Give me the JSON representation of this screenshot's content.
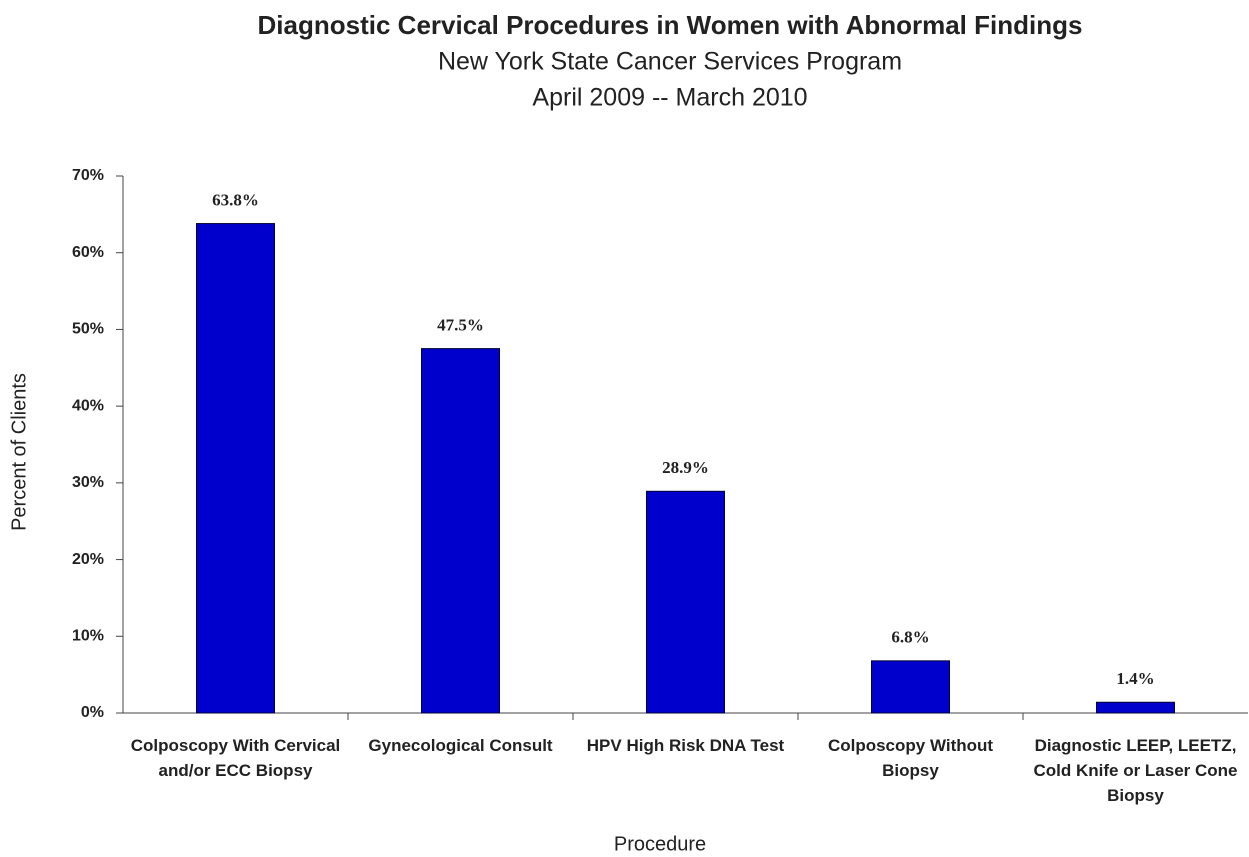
{
  "chart_data": {
    "type": "bar",
    "title": "Diagnostic Cervical Procedures in Women with Abnormal Findings",
    "subtitle": [
      "New York State Cancer Services Program",
      "April 2009 -- March 2010"
    ],
    "x_label": "Procedure",
    "y_label": "Percent of Clients",
    "categories": [
      "Colposcopy With Cervical and/or ECC Biopsy",
      "Gynecological Consult",
      "HPV High Risk DNA Test",
      "Colposcopy Without Biopsy",
      "Diagnostic LEEP, LEETZ, Cold Knife or Laser Cone Biopsy"
    ],
    "values": [
      63.8,
      47.5,
      28.9,
      6.8,
      1.4
    ],
    "value_labels": [
      "63.8%",
      "47.5%",
      "28.9%",
      "6.8%",
      "1.4%"
    ],
    "color": "#0000cc",
    "ylim": [
      0,
      70
    ],
    "yticks": [
      {
        "value": 0,
        "label": "0%"
      },
      {
        "value": 10,
        "label": "10%"
      },
      {
        "value": 20,
        "label": "20%"
      },
      {
        "value": 30,
        "label": "30%"
      },
      {
        "value": 40,
        "label": "40%"
      },
      {
        "value": 50,
        "label": "50%"
      },
      {
        "value": 60,
        "label": "60%"
      },
      {
        "value": 70,
        "label": "70%"
      }
    ],
    "grid": false
  }
}
